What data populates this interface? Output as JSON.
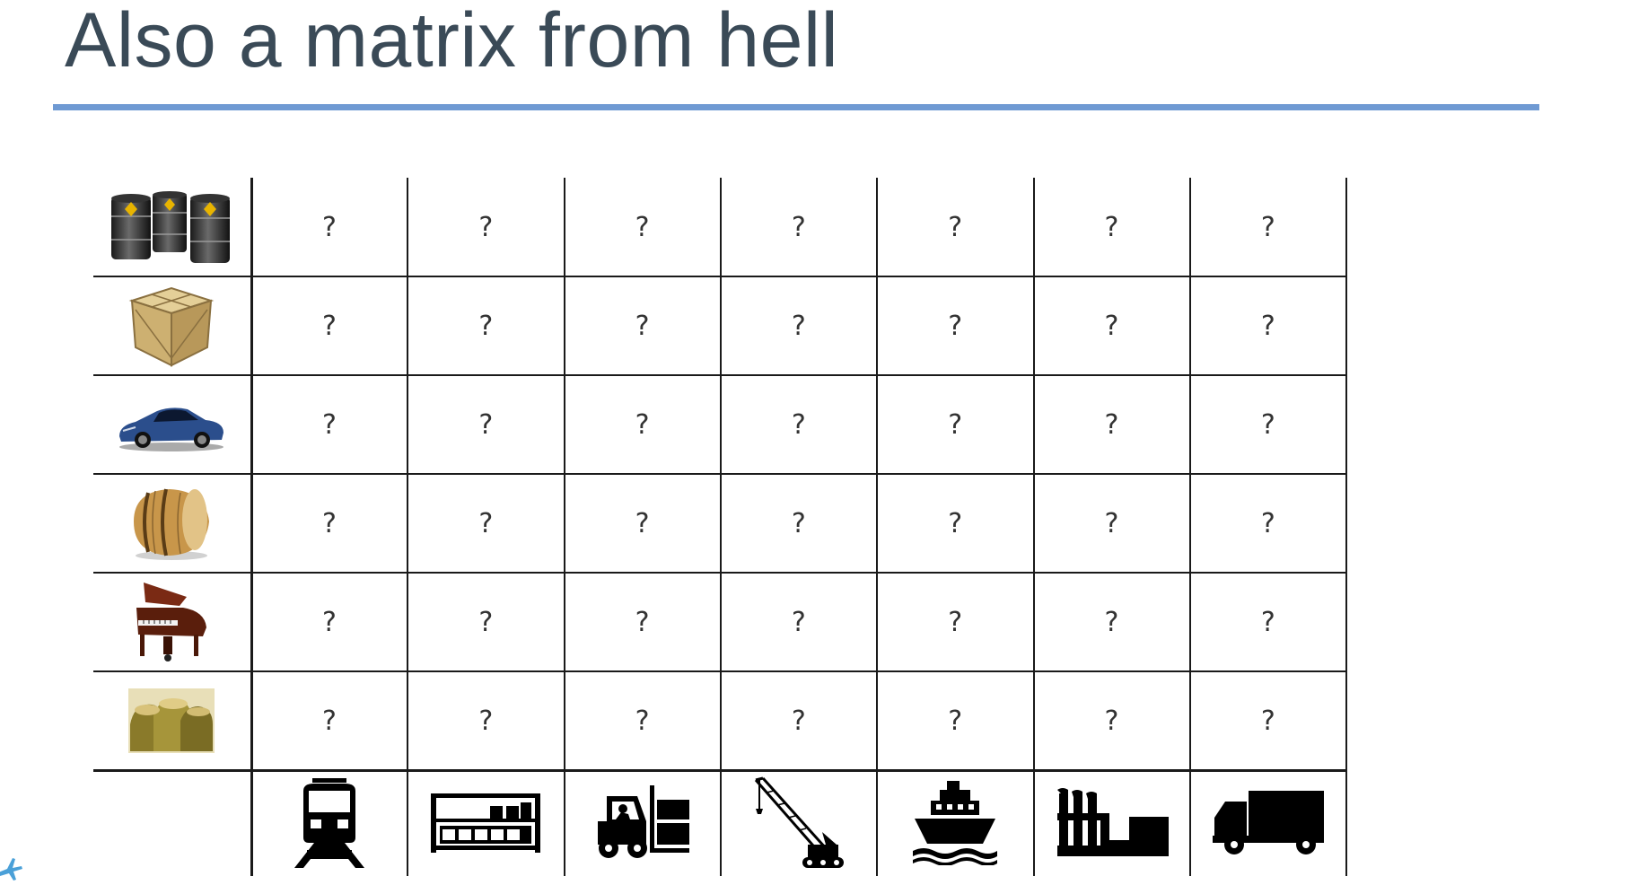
{
  "slide": {
    "title": "Also a matrix from hell",
    "accent_color": "#6f9ad3",
    "title_color": "#3a4a57"
  },
  "matrix": {
    "rows": [
      {
        "icon": "oil-barrels-icon"
      },
      {
        "icon": "wooden-crate-icon"
      },
      {
        "icon": "sports-car-icon"
      },
      {
        "icon": "wooden-barrel-icon"
      },
      {
        "icon": "grand-piano-icon"
      },
      {
        "icon": "sacks-icon"
      }
    ],
    "columns": [
      {
        "icon": "train-icon"
      },
      {
        "icon": "container-rack-icon"
      },
      {
        "icon": "forklift-icon"
      },
      {
        "icon": "crane-icon"
      },
      {
        "icon": "ship-icon"
      },
      {
        "icon": "factory-icon"
      },
      {
        "icon": "truck-icon"
      }
    ],
    "cells": [
      [
        "?",
        "?",
        "?",
        "?",
        "?",
        "?",
        "?"
      ],
      [
        "?",
        "?",
        "?",
        "?",
        "?",
        "?",
        "?"
      ],
      [
        "?",
        "?",
        "?",
        "?",
        "?",
        "?",
        "?"
      ],
      [
        "?",
        "?",
        "?",
        "?",
        "?",
        "?",
        "?"
      ],
      [
        "?",
        "?",
        "?",
        "?",
        "?",
        "?",
        "?"
      ],
      [
        "?",
        "?",
        "?",
        "?",
        "?",
        "?",
        "?"
      ]
    ]
  }
}
